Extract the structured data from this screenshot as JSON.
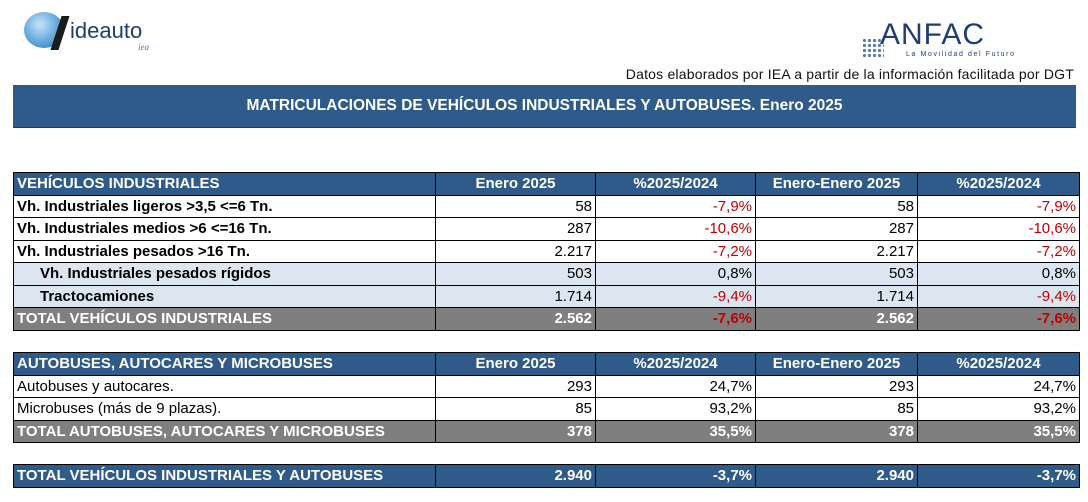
{
  "logos": {
    "left_word": "ideauto",
    "left_sub": "iea",
    "right_word": "ANFAC",
    "right_tagline": "La Movilidad del Futuro"
  },
  "source": "Datos elaborados por IEA a partir de la información facilitada por DGT",
  "title": "MATRICULACIONES DE VEHÍCULOS INDUSTRIALES Y AUTOBUSES.  Enero 2025",
  "columns": [
    "Enero 2025",
    "%2025/2024",
    "Enero-Enero 2025",
    "%2025/2024"
  ],
  "industriales": {
    "header": "VEHÍCULOS INDUSTRIALES",
    "rows": [
      {
        "label": "Vh. Industriales ligeros >3,5 <=6 Tn.",
        "v1": "58",
        "p1": "-7,9%",
        "v2": "58",
        "p2": "-7,9%"
      },
      {
        "label": "Vh. Industriales medios >6  <=16 Tn.",
        "v1": "287",
        "p1": "-10,6%",
        "v2": "287",
        "p2": "-10,6%"
      },
      {
        "label": "Vh. Industriales  pesados >16 Tn.",
        "v1": "2.217",
        "p1": "-7,2%",
        "v2": "2.217",
        "p2": "-7,2%"
      },
      {
        "label": "Vh. Industriales pesados rígidos",
        "v1": "503",
        "p1": "0,8%",
        "v2": "503",
        "p2": "0,8%"
      },
      {
        "label": "Tractocamiones",
        "v1": "1.714",
        "p1": "-9,4%",
        "v2": "1.714",
        "p2": "-9,4%"
      }
    ],
    "total": {
      "label": "TOTAL VEHÍCULOS INDUSTRIALES",
      "v1": "2.562",
      "p1": "-7,6%",
      "v2": "2.562",
      "p2": "-7,6%"
    }
  },
  "autobuses": {
    "header": "AUTOBUSES, AUTOCARES Y MICROBUSES",
    "rows": [
      {
        "label": "Autobuses y autocares.",
        "v1": "293",
        "p1": "24,7%",
        "v2": "293",
        "p2": "24,7%"
      },
      {
        "label": "Microbuses (más de 9 plazas).",
        "v1": "85",
        "p1": "93,2%",
        "v2": "85",
        "p2": "93,2%"
      }
    ],
    "total": {
      "label": "TOTAL AUTOBUSES, AUTOCARES Y MICROBUSES",
      "v1": "378",
      "p1": "35,5%",
      "v2": "378",
      "p2": "35,5%"
    }
  },
  "grand_total": {
    "label": "TOTAL VEHÍCULOS INDUSTRIALES Y AUTOBUSES",
    "v1": "2.940",
    "p1": "-3,7%",
    "v2": "2.940",
    "p2": "-3,7%"
  },
  "colors": {
    "header_blue": "#2e5b8a",
    "total_grey": "#7f7f7f",
    "subrow_bg": "#dce6f1",
    "negative_red": "#c00000"
  }
}
